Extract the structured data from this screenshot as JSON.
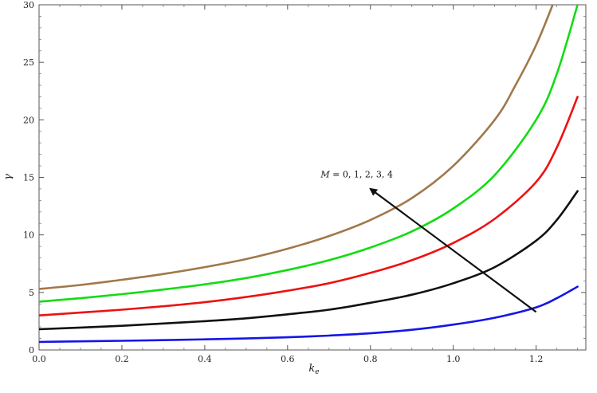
{
  "chart_data": {
    "type": "line",
    "xlabel": "k",
    "xlabel_sub": "e",
    "ylabel": "γ",
    "xlim": [
      0,
      1.32
    ],
    "ylim": [
      0,
      30
    ],
    "xticks": [
      "0.0",
      "0.2",
      "0.4",
      "0.6",
      "0.8",
      "1.0",
      "1.2"
    ],
    "xtick_values": [
      0,
      0.2,
      0.4,
      0.6,
      0.8,
      1.0,
      1.2
    ],
    "yticks": [
      "0",
      "5",
      "10",
      "15",
      "20",
      "25",
      "30"
    ],
    "ytick_values": [
      0,
      5,
      10,
      15,
      20,
      25,
      30
    ],
    "grid": false,
    "annotation": {
      "var": "M",
      "text": " = 0, 1, 2, 3, 4",
      "arrow_from": [
        1.2,
        3.3
      ],
      "arrow_to": [
        0.8,
        14.0
      ],
      "text_at": [
        0.68,
        15.0
      ]
    },
    "series": [
      {
        "color": "#1515e8",
        "x": [
          0,
          0.1,
          0.2,
          0.3,
          0.4,
          0.5,
          0.6,
          0.7,
          0.8,
          0.9,
          1.0,
          1.1,
          1.2,
          1.25,
          1.3
        ],
        "y": [
          0.7,
          0.75,
          0.8,
          0.85,
          0.92,
          1.0,
          1.1,
          1.25,
          1.45,
          1.75,
          2.2,
          2.8,
          3.7,
          4.5,
          5.5
        ]
      },
      {
        "color": "#111111",
        "x": [
          0,
          0.1,
          0.2,
          0.3,
          0.4,
          0.5,
          0.6,
          0.7,
          0.8,
          0.9,
          1.0,
          1.1,
          1.2,
          1.25,
          1.3
        ],
        "y": [
          1.8,
          1.95,
          2.1,
          2.3,
          2.5,
          2.75,
          3.1,
          3.5,
          4.1,
          4.8,
          5.8,
          7.2,
          9.5,
          11.3,
          13.8
        ]
      },
      {
        "color": "#ee1111",
        "x": [
          0,
          0.1,
          0.2,
          0.3,
          0.4,
          0.5,
          0.6,
          0.7,
          0.8,
          0.9,
          1.0,
          1.1,
          1.2,
          1.25,
          1.3
        ],
        "y": [
          3.0,
          3.25,
          3.5,
          3.8,
          4.15,
          4.6,
          5.15,
          5.8,
          6.7,
          7.8,
          9.3,
          11.4,
          14.6,
          17.6,
          22.0
        ]
      },
      {
        "color": "#11dd11",
        "x": [
          0,
          0.1,
          0.2,
          0.3,
          0.4,
          0.5,
          0.6,
          0.7,
          0.8,
          0.9,
          1.0,
          1.1,
          1.2,
          1.25,
          1.3
        ],
        "y": [
          4.2,
          4.5,
          4.85,
          5.25,
          5.7,
          6.25,
          6.95,
          7.8,
          8.9,
          10.3,
          12.3,
          15.2,
          20.0,
          24.0,
          30.0
        ]
      },
      {
        "color": "#a0784a",
        "x": [
          0,
          0.1,
          0.2,
          0.3,
          0.4,
          0.5,
          0.6,
          0.7,
          0.8,
          0.9,
          1.0,
          1.1,
          1.15,
          1.2,
          1.24
        ],
        "y": [
          5.3,
          5.65,
          6.1,
          6.6,
          7.2,
          7.9,
          8.8,
          9.9,
          11.3,
          13.2,
          16.0,
          20.0,
          23.0,
          26.5,
          30.0
        ]
      }
    ]
  }
}
